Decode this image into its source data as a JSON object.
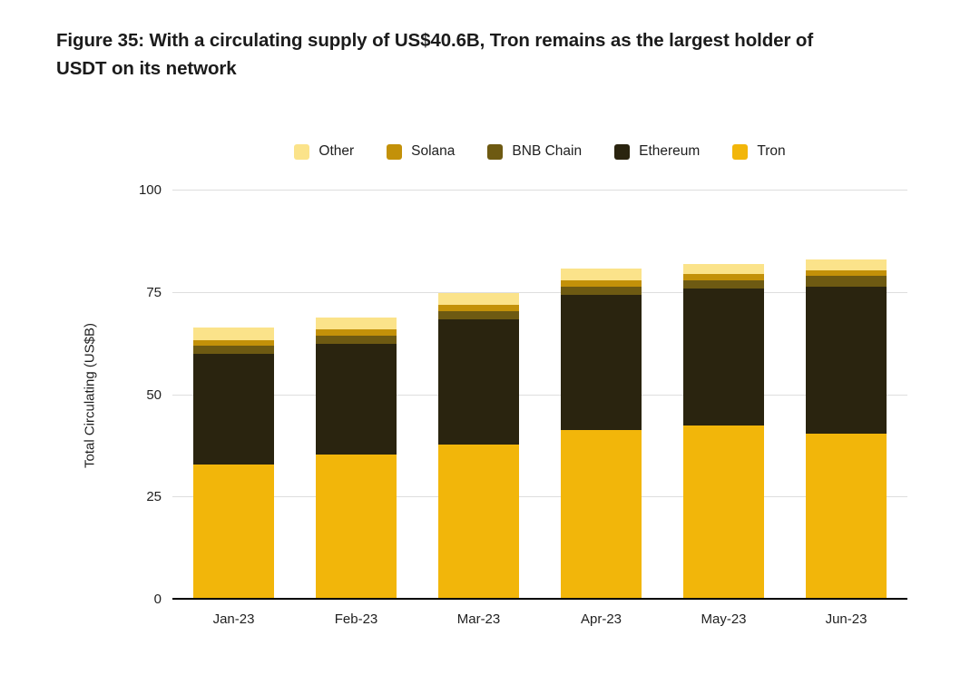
{
  "figure": {
    "title_lines": [
      "Figure 35: With a circulating supply of US$40.6B, Tron remains as the largest holder of",
      "USDT on its network"
    ]
  },
  "chart_data": {
    "type": "bar",
    "stacked": true,
    "title": "Figure 35: With a circulating supply of US$40.6B, Tron remains as the largest holder of USDT on its network",
    "categories": [
      "Jan-23",
      "Feb-23",
      "Mar-23",
      "Apr-23",
      "May-23",
      "Jun-23"
    ],
    "series": [
      {
        "name": "Tron",
        "color": "#F2B60A",
        "values": [
          33.0,
          35.5,
          38.0,
          41.5,
          42.5,
          40.6
        ]
      },
      {
        "name": "Ethereum",
        "color": "#2A240F",
        "values": [
          27.0,
          27.0,
          30.5,
          33.0,
          33.5,
          36.0
        ]
      },
      {
        "name": "BNB Chain",
        "color": "#6E5A12",
        "values": [
          2.0,
          2.0,
          2.0,
          2.0,
          2.0,
          2.5
        ]
      },
      {
        "name": "Solana",
        "color": "#C39109",
        "values": [
          1.5,
          1.5,
          1.5,
          1.5,
          1.5,
          1.5
        ]
      },
      {
        "name": "Other",
        "color": "#FBE38A",
        "values": [
          3.0,
          3.0,
          3.0,
          3.0,
          2.5,
          2.5
        ]
      }
    ],
    "totals": [
      66.5,
      69.0,
      75.0,
      81.0,
      82.0,
      83.1
    ],
    "legend": [
      "Other",
      "Solana",
      "BNB Chain",
      "Ethereum",
      "Tron"
    ],
    "legend_position": "top",
    "xlabel": "",
    "ylabel": "Total Circulating (US$B)",
    "ylim": [
      0,
      100
    ],
    "yticks": [
      0,
      25,
      50,
      75,
      100
    ],
    "grid": true,
    "grid_color": "#dedede",
    "axis_color": "#000000"
  }
}
